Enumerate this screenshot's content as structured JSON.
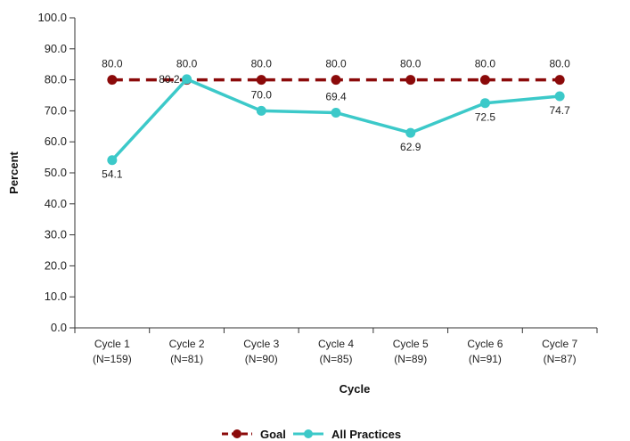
{
  "chart_data": {
    "type": "line",
    "title": "",
    "xlabel": "Cycle",
    "ylabel": "Percent",
    "ylim": [
      0,
      100
    ],
    "yticks": [
      "0.0",
      "10.0",
      "20.0",
      "30.0",
      "40.0",
      "50.0",
      "60.0",
      "70.0",
      "80.0",
      "90.0",
      "100.0"
    ],
    "categories": [
      [
        "Cycle 1",
        "(N=159)"
      ],
      [
        "Cycle 2",
        "(N=81)"
      ],
      [
        "Cycle 3",
        "(N=90)"
      ],
      [
        "Cycle 4",
        "(N=85)"
      ],
      [
        "Cycle 5",
        "(N=89)"
      ],
      [
        "Cycle 6",
        "(N=91)"
      ],
      [
        "Cycle 7",
        "(N=87)"
      ]
    ],
    "series": [
      {
        "name": "Goal",
        "color": "#8b0a0a",
        "dashed": true,
        "values": [
          80.0,
          80.0,
          80.0,
          80.0,
          80.0,
          80.0,
          80.0
        ],
        "labels": [
          "80.0",
          "80.0",
          "80.0",
          "80.0",
          "80.0",
          "80.0",
          "80.0"
        ]
      },
      {
        "name": "All Practices",
        "color": "#3cc9c9",
        "dashed": false,
        "values": [
          54.1,
          80.2,
          70.0,
          69.4,
          62.9,
          72.5,
          74.7
        ],
        "labels": [
          "54.1",
          "80.2",
          "70.0",
          "69.4",
          "62.9",
          "72.5",
          "74.7"
        ]
      }
    ],
    "grid": false,
    "legend_position": "bottom-center"
  }
}
